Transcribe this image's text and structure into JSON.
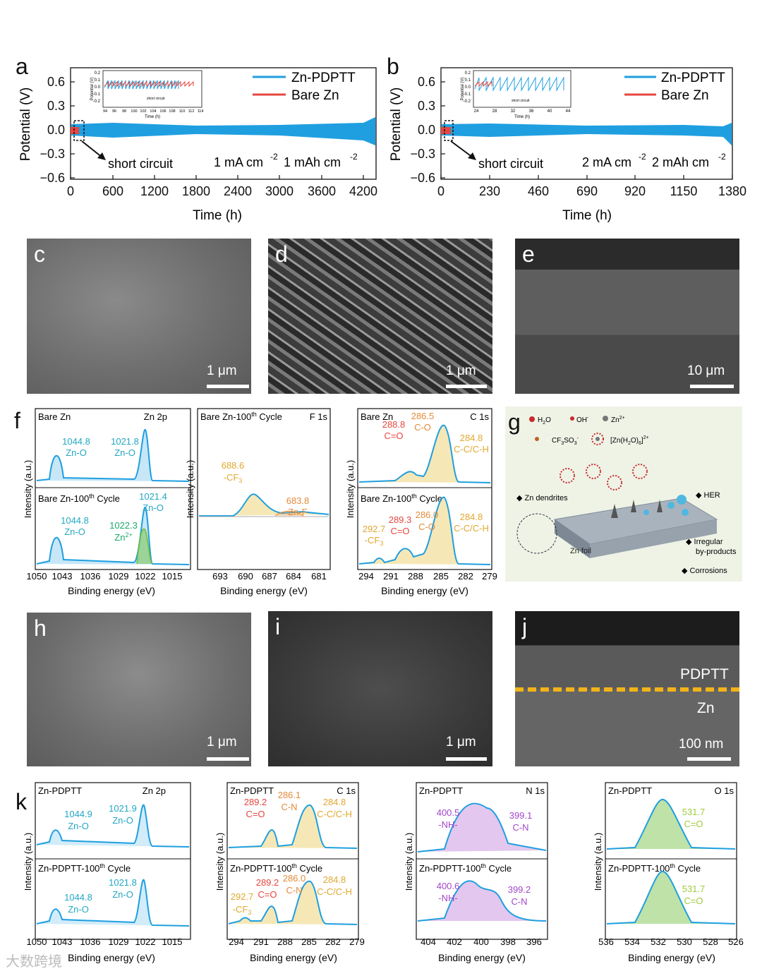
{
  "colors": {
    "blue": "#1f9fe0",
    "red": "#e5473f",
    "yellow": "#e8c648",
    "orange": "#e38a3a",
    "purple": "#a147c9",
    "green": "#6fbf3c",
    "cyan": "#22a7c4",
    "axis": "#111111"
  },
  "panel_letters": {
    "a": "a",
    "b": "b",
    "c": "c",
    "d": "d",
    "e": "e",
    "f": "f",
    "g": "g",
    "h": "h",
    "i": "i",
    "j": "j",
    "k": "k"
  },
  "chart_data": [
    {
      "id": "a",
      "type": "line",
      "ylabel": "Potential (V)",
      "xlabel": "Time (h)",
      "xticks": [
        "0",
        "600",
        "1200",
        "1800",
        "2400",
        "3000",
        "3600",
        "4200"
      ],
      "yticks": [
        "0.6",
        "0.3",
        "0.0",
        "−0.3",
        "−0.6"
      ],
      "xlim": [
        0,
        4300
      ],
      "ylim": [
        -0.6,
        0.75
      ],
      "series": [
        {
          "name": "Zn-PDPTT",
          "color": "#1f9fe0"
        },
        {
          "name": "Bare Zn",
          "color": "#e5473f"
        }
      ],
      "annotations": [
        "short circuit",
        "1 mA cm",
        "-2",
        "1 mAh cm",
        "-2"
      ],
      "inset": {
        "ylabel": "Potential (V)",
        "xlabel": "Time (h)",
        "xticks": [
          "94",
          "96",
          "98",
          "100",
          "102",
          "104",
          "106",
          "108",
          "110",
          "112",
          "114"
        ],
        "yticks": [
          "0.2",
          "0.1",
          "0.0",
          "-0.1",
          "-0.2"
        ],
        "note": "short circuit"
      }
    },
    {
      "id": "b",
      "type": "line",
      "ylabel": "Potential (V)",
      "xlabel": "Time (h)",
      "xticks": [
        "0",
        "230",
        "460",
        "690",
        "920",
        "1150",
        "1380"
      ],
      "yticks": [
        "0.6",
        "0.3",
        "0.0",
        "−0.3",
        "−0.6"
      ],
      "xlim": [
        0,
        1380
      ],
      "ylim": [
        -0.6,
        0.75
      ],
      "series": [
        {
          "name": "Zn-PDPTT",
          "color": "#1f9fe0"
        },
        {
          "name": "Bare Zn",
          "color": "#e5473f"
        }
      ],
      "annotations": [
        "short circuit",
        "2 mA cm",
        "-2",
        "2 mAh cm",
        "-2"
      ],
      "inset": {
        "ylabel": "Potential (V)",
        "xlabel": "Time (h)",
        "xticks": [
          "24",
          "28",
          "32",
          "36",
          "40",
          "44"
        ],
        "yticks": [
          "0.2",
          "0.1",
          "0.0",
          "-0.1",
          "-0.2"
        ],
        "note": "short circuit"
      }
    }
  ],
  "sem": {
    "c": {
      "scale": "1 μm"
    },
    "d": {
      "scale": "1 μm"
    },
    "e": {
      "scale": "10 μm"
    },
    "h": {
      "scale": "1 μm"
    },
    "i": {
      "scale": "1 μm"
    },
    "j": {
      "scale": "100 nm",
      "layer_top": "PDPTT",
      "layer_bottom": "Zn"
    }
  },
  "f": {
    "ylabel": "Intensity (a.u.)",
    "xlabel": "Binding energy (eV)",
    "p1": {
      "top_title": "Bare Zn",
      "bottom_title": "Bare Zn-100",
      "sup": "th",
      "bottom_suffix": " Cycle",
      "region": "Zn 2p",
      "top_peaks": [
        {
          "v": "1044.8",
          "n": "Zn-O"
        },
        {
          "v": "1021.8",
          "n": "Zn-O"
        }
      ],
      "bottom_peaks": [
        {
          "v": "1044.8",
          "n": "Zn-O"
        },
        {
          "v": "1021.4",
          "n": "Zn-O"
        },
        {
          "v": "1022.3",
          "n": "Zn"
        }
      ],
      "zn_sup": "2+",
      "xticks": [
        "1050",
        "1043",
        "1036",
        "1029",
        "1022",
        "1015"
      ]
    },
    "p2": {
      "title": "Bare Zn-100",
      "sup": "th",
      "suffix": " Cycle",
      "region": "F 1s",
      "peaks": [
        {
          "v": "688.6",
          "n": "-CF",
          "sub": "3"
        },
        {
          "v": "683.8",
          "n": "Zn-F"
        }
      ],
      "xticks": [
        "693",
        "690",
        "687",
        "684",
        "681"
      ]
    },
    "p3": {
      "top_title": "Bare Zn",
      "bottom_title": "Bare Zn-100",
      "sup": "th",
      "bottom_suffix": " Cycle",
      "region": "C 1s",
      "top_peaks": [
        {
          "v": "288.8",
          "n": "C=O"
        },
        {
          "v": "286.5",
          "n": "C-O"
        },
        {
          "v": "284.8",
          "n": "C-C/C-H"
        }
      ],
      "bottom_peaks": [
        {
          "v": "292.7",
          "n": "-CF",
          "sub": "3"
        },
        {
          "v": "289.3",
          "n": "C=O"
        },
        {
          "v": "286.0",
          "n": "C-O"
        },
        {
          "v": "284.8",
          "n": "C-C/C-H"
        }
      ],
      "xticks": [
        "294",
        "291",
        "288",
        "285",
        "282",
        "279"
      ]
    }
  },
  "g": {
    "legend": {
      "h2o": "H",
      "h2o_sub": "2",
      "h2o_tail": "O",
      "oh": "OH",
      "oh_sup": "-",
      "zn": "Zn",
      "zn_sup": "2+",
      "cf": "CF",
      "cf_sub": "3",
      "cf_tail": "SO",
      "cf_sub2": "3",
      "cf_sup": "-",
      "hyd": "[Zn(H",
      "hyd_sub": "2",
      "hyd_mid": "O)",
      "hyd_sub2": "6",
      "hyd_tail": "]",
      "hyd_sup": "2+"
    },
    "labels": {
      "dendrites": "◆ Zn dendrites",
      "her": "◆ HER",
      "foil": "Zn foil",
      "irregular1": "◆ Irregular",
      "irregular2": "by-products",
      "corrosion": "◆ Corrosions"
    }
  },
  "k": {
    "ylabel": "Intensity (a.u.)",
    "xlabel": "Binding energy (eV)",
    "p1": {
      "top_title": "Zn-PDPTT",
      "bottom_title": "Zn-PDPTT-100",
      "sup": "th",
      "suffix": " Cycle",
      "region": "Zn 2p",
      "top_peaks": [
        {
          "v": "1044.9",
          "n": "Zn-O"
        },
        {
          "v": "1021.9",
          "n": "Zn-O"
        }
      ],
      "bottom_peaks": [
        {
          "v": "1044.8",
          "n": "Zn-O"
        },
        {
          "v": "1021.8",
          "n": "Zn-O"
        }
      ],
      "xticks": [
        "1050",
        "1043",
        "1036",
        "1029",
        "1022",
        "1015"
      ]
    },
    "p2": {
      "top_title": "Zn-PDPTT",
      "bottom_title": "Zn-PDPTT-100",
      "sup": "th",
      "suffix": " Cycle",
      "region": "C 1s",
      "top_peaks": [
        {
          "v": "289.2",
          "n": "C=O"
        },
        {
          "v": "286.1",
          "n": "C-N"
        },
        {
          "v": "284.8",
          "n": "C-C/C-H"
        }
      ],
      "bottom_peaks": [
        {
          "v": "292.7",
          "n": "-CF",
          "sub": "3"
        },
        {
          "v": "289.2",
          "n": "C=O"
        },
        {
          "v": "286.0",
          "n": "C-N"
        },
        {
          "v": "284.8",
          "n": "C-C/C-H"
        }
      ],
      "xticks": [
        "294",
        "291",
        "288",
        "285",
        "282",
        "279"
      ]
    },
    "p3": {
      "top_title": "Zn-PDPTT",
      "bottom_title": "Zn-PDPTT-100",
      "sup": "th",
      "suffix": " Cycle",
      "region": "N 1s",
      "top_peaks": [
        {
          "v": "400.5",
          "n": "-NH-"
        },
        {
          "v": "399.1",
          "n": "C-N"
        }
      ],
      "bottom_peaks": [
        {
          "v": "400.6",
          "n": "-NH-"
        },
        {
          "v": "399.2",
          "n": "C-N"
        }
      ],
      "xticks": [
        "404",
        "402",
        "400",
        "398",
        "396"
      ]
    },
    "p4": {
      "top_title": "Zn-PDPTT",
      "bottom_title": "Zn-PDPTT-100",
      "sup": "th",
      "suffix": " Cycle",
      "region": "O 1s",
      "top_peaks": [
        {
          "v": "531.7",
          "n": "C=O"
        }
      ],
      "bottom_peaks": [
        {
          "v": "531.7",
          "n": "C=O"
        }
      ],
      "xticks": [
        "536",
        "534",
        "532",
        "530",
        "528",
        "526"
      ]
    }
  },
  "watermark": "大数跨境"
}
